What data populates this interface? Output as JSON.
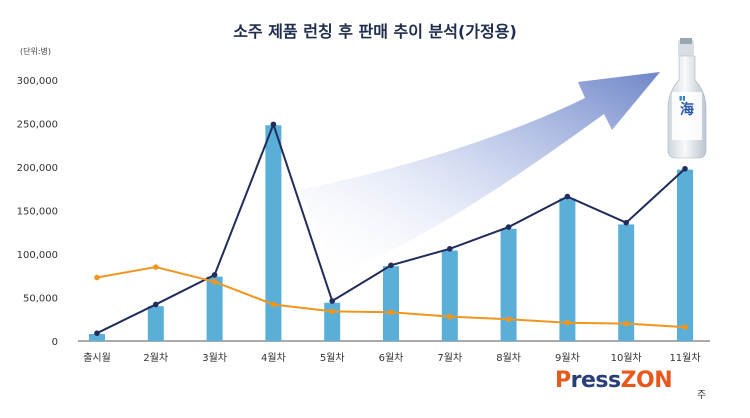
{
  "chart_data": {
    "type": "bar+line",
    "title": "소주 제품 런칭 후 판매 추이 분석(가정용)",
    "unit_label": "(단위:병)",
    "categories": [
      "출시월",
      "2월차",
      "3월차",
      "4월차",
      "5월차",
      "6월차",
      "7월차",
      "8월차",
      "9월차",
      "10월차",
      "11월차"
    ],
    "bar_series": {
      "values": [
        8000,
        40000,
        74000,
        248000,
        44000,
        86000,
        104000,
        129000,
        164000,
        134000,
        197000
      ],
      "color": "#5aafd9"
    },
    "line_series": [
      {
        "values": [
          9000,
          42000,
          76000,
          249000,
          46000,
          87000,
          106000,
          131000,
          166000,
          136000,
          198000
        ],
        "color": "#222b59"
      },
      {
        "values": [
          73000,
          85000,
          68000,
          42000,
          34000,
          33000,
          28000,
          25000,
          21000,
          20000,
          16000
        ],
        "color": "#f0961e"
      }
    ],
    "y_ticks": [
      "0",
      "50,000",
      "100,000",
      "150,000",
      "200,000",
      "250,000",
      "300,000"
    ],
    "ylim": [
      0,
      300000
    ],
    "grid": false,
    "legend": "none"
  },
  "logo": {
    "brand_part1": "ress",
    "brand_part2": "ZON",
    "suffix": "주"
  }
}
